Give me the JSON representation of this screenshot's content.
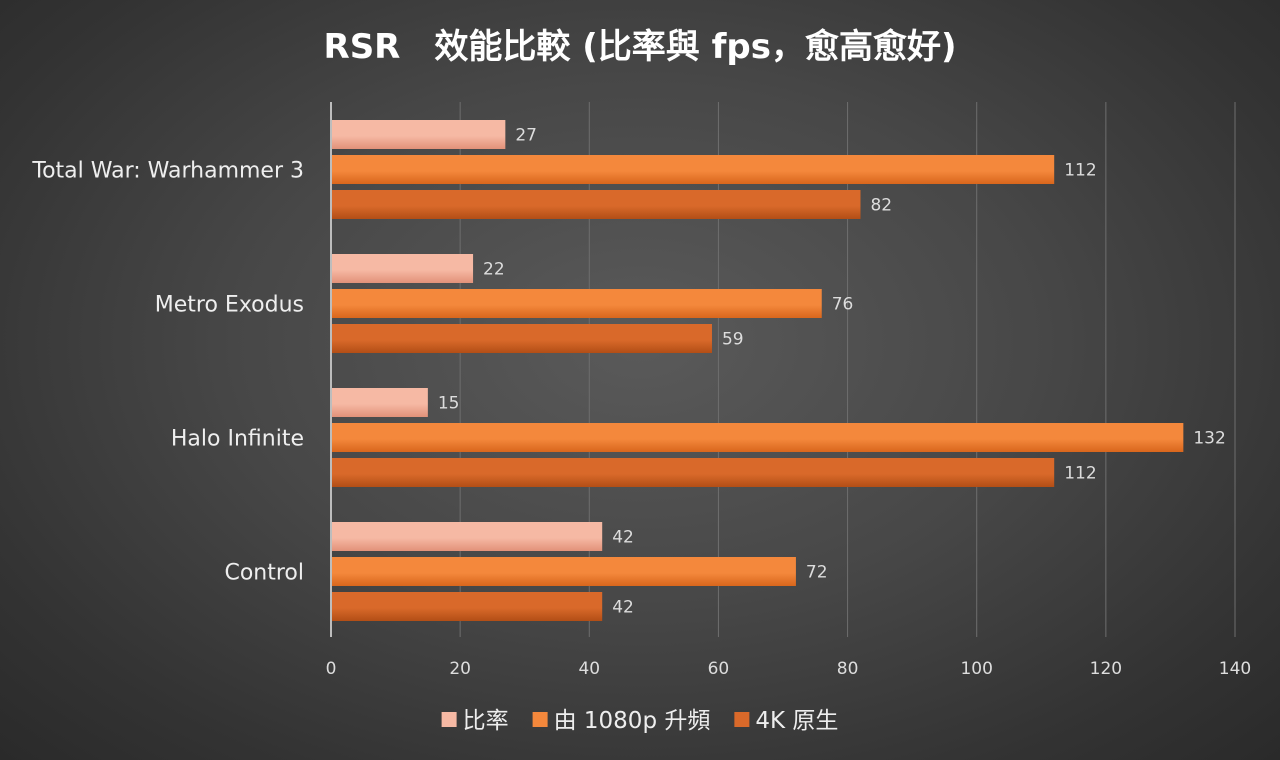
{
  "chart_data": {
    "type": "bar",
    "orientation": "horizontal",
    "title": "RSR　效能比較 (比率與 fps，愈高愈好)",
    "categories": [
      "Total War: Warhammer 3",
      "Metro Exodus",
      "Halo Infinite",
      "Control"
    ],
    "series": [
      {
        "name": "比率",
        "values": [
          27,
          22,
          15,
          42
        ],
        "color": "#f6b9a4",
        "color_dark": "#e29179"
      },
      {
        "name": "由 1080p 升頻",
        "values": [
          112,
          76,
          132,
          72
        ],
        "color": "#f4883c",
        "color_dark": "#d9661c"
      },
      {
        "name": "4K 原生",
        "values": [
          82,
          59,
          112,
          42
        ],
        "color": "#d9692a",
        "color_dark": "#b24e16"
      }
    ],
    "xlim": [
      0,
      140
    ],
    "xticks": [
      0,
      20,
      40,
      60,
      80,
      100,
      120,
      140
    ],
    "xlabel": "",
    "ylabel": "",
    "grid": true,
    "legend_position": "bottom"
  }
}
